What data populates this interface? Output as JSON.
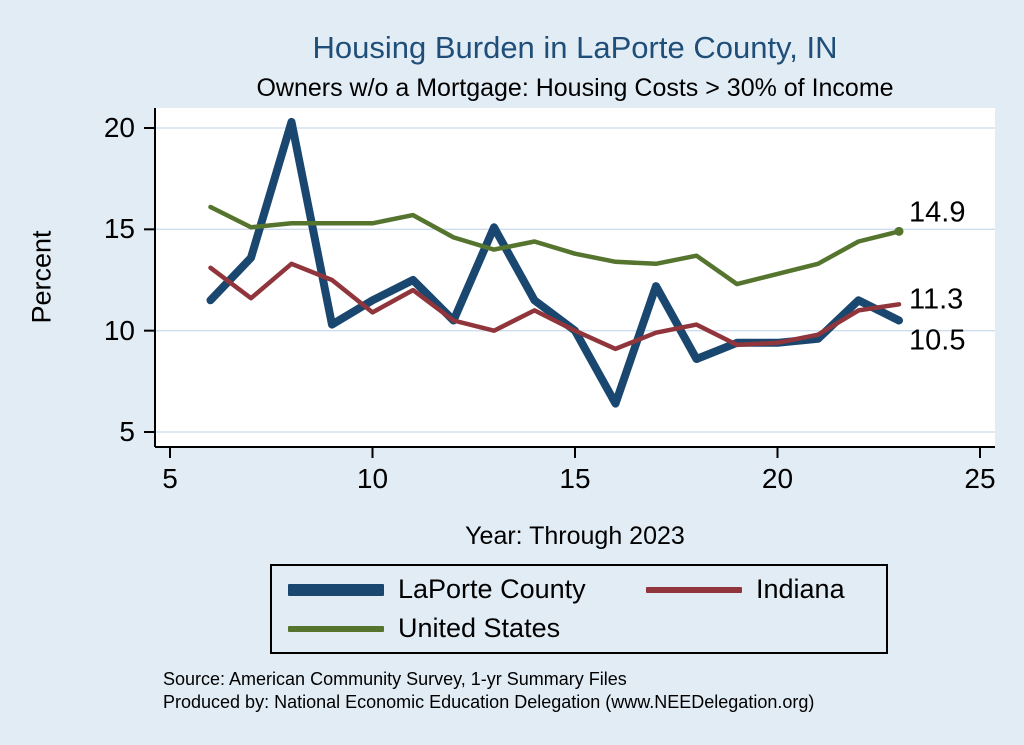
{
  "title": "Housing Burden in LaPorte County, IN",
  "subtitle": "Owners w/o a Mortgage: Housing Costs > 30% of Income",
  "ylabel": "Percent",
  "xlabel": "Year: Through 2023",
  "source_line1": "Source: American Community Survey, 1-yr Summary Files",
  "source_line2": "Produced by: National Economic Education Delegation (www.NEEDelegation.org)",
  "colors": {
    "background": "#e2ecf5",
    "plot_background": "#ffffff",
    "grid": "#cdddee",
    "axis": "#000000",
    "title": "#1f4e79"
  },
  "legend": {
    "position": "bottom-center",
    "items": [
      {
        "label": "LaPorte County",
        "color": "#1a476f",
        "thick": true
      },
      {
        "label": "Indiana",
        "color": "#90353b",
        "thick": false
      },
      {
        "label": "United States",
        "color": "#55752f",
        "thick": false
      }
    ]
  },
  "chart_data": {
    "type": "line",
    "title": "Housing Burden in LaPorte County, IN",
    "subtitle": "Owners w/o a Mortgage: Housing Costs > 30% of Income",
    "xlabel": "Year: Through 2023",
    "ylabel": "Percent",
    "xlim": [
      5,
      25
    ],
    "ylim": [
      5,
      20
    ],
    "xticks": [
      5,
      10,
      15,
      20,
      25
    ],
    "yticks": [
      5,
      10,
      15,
      20
    ],
    "grid": "horizontal",
    "x": [
      6,
      7,
      8,
      9,
      10,
      11,
      12,
      13,
      14,
      15,
      16,
      17,
      18,
      19,
      20,
      21,
      22,
      23
    ],
    "series": [
      {
        "name": "LaPorte County",
        "color": "#1a476f",
        "width": 8,
        "values": [
          11.5,
          13.6,
          20.3,
          10.3,
          11.5,
          12.5,
          10.5,
          15.1,
          11.5,
          10.0,
          6.4,
          12.2,
          8.6,
          9.4,
          9.4,
          9.6,
          11.5,
          10.5
        ],
        "end_label": "10.5",
        "end_label_dy": 20,
        "end_dot": false
      },
      {
        "name": "Indiana",
        "color": "#90353b",
        "width": 4.5,
        "values": [
          13.1,
          11.6,
          13.3,
          12.5,
          10.9,
          12.0,
          10.5,
          10.0,
          11.0,
          10.0,
          9.1,
          9.9,
          10.3,
          9.3,
          9.4,
          9.8,
          11.0,
          11.3
        ],
        "end_label": "11.3",
        "end_label_dy": -4,
        "end_dot": false
      },
      {
        "name": "United States",
        "color": "#55752f",
        "width": 4.5,
        "values": [
          16.1,
          15.1,
          15.3,
          15.3,
          15.3,
          15.7,
          14.6,
          14.0,
          14.4,
          13.8,
          13.4,
          13.3,
          13.7,
          12.3,
          12.8,
          13.3,
          14.4,
          14.9
        ],
        "end_label": "14.9",
        "end_label_dy": -18,
        "end_dot": true
      }
    ]
  }
}
